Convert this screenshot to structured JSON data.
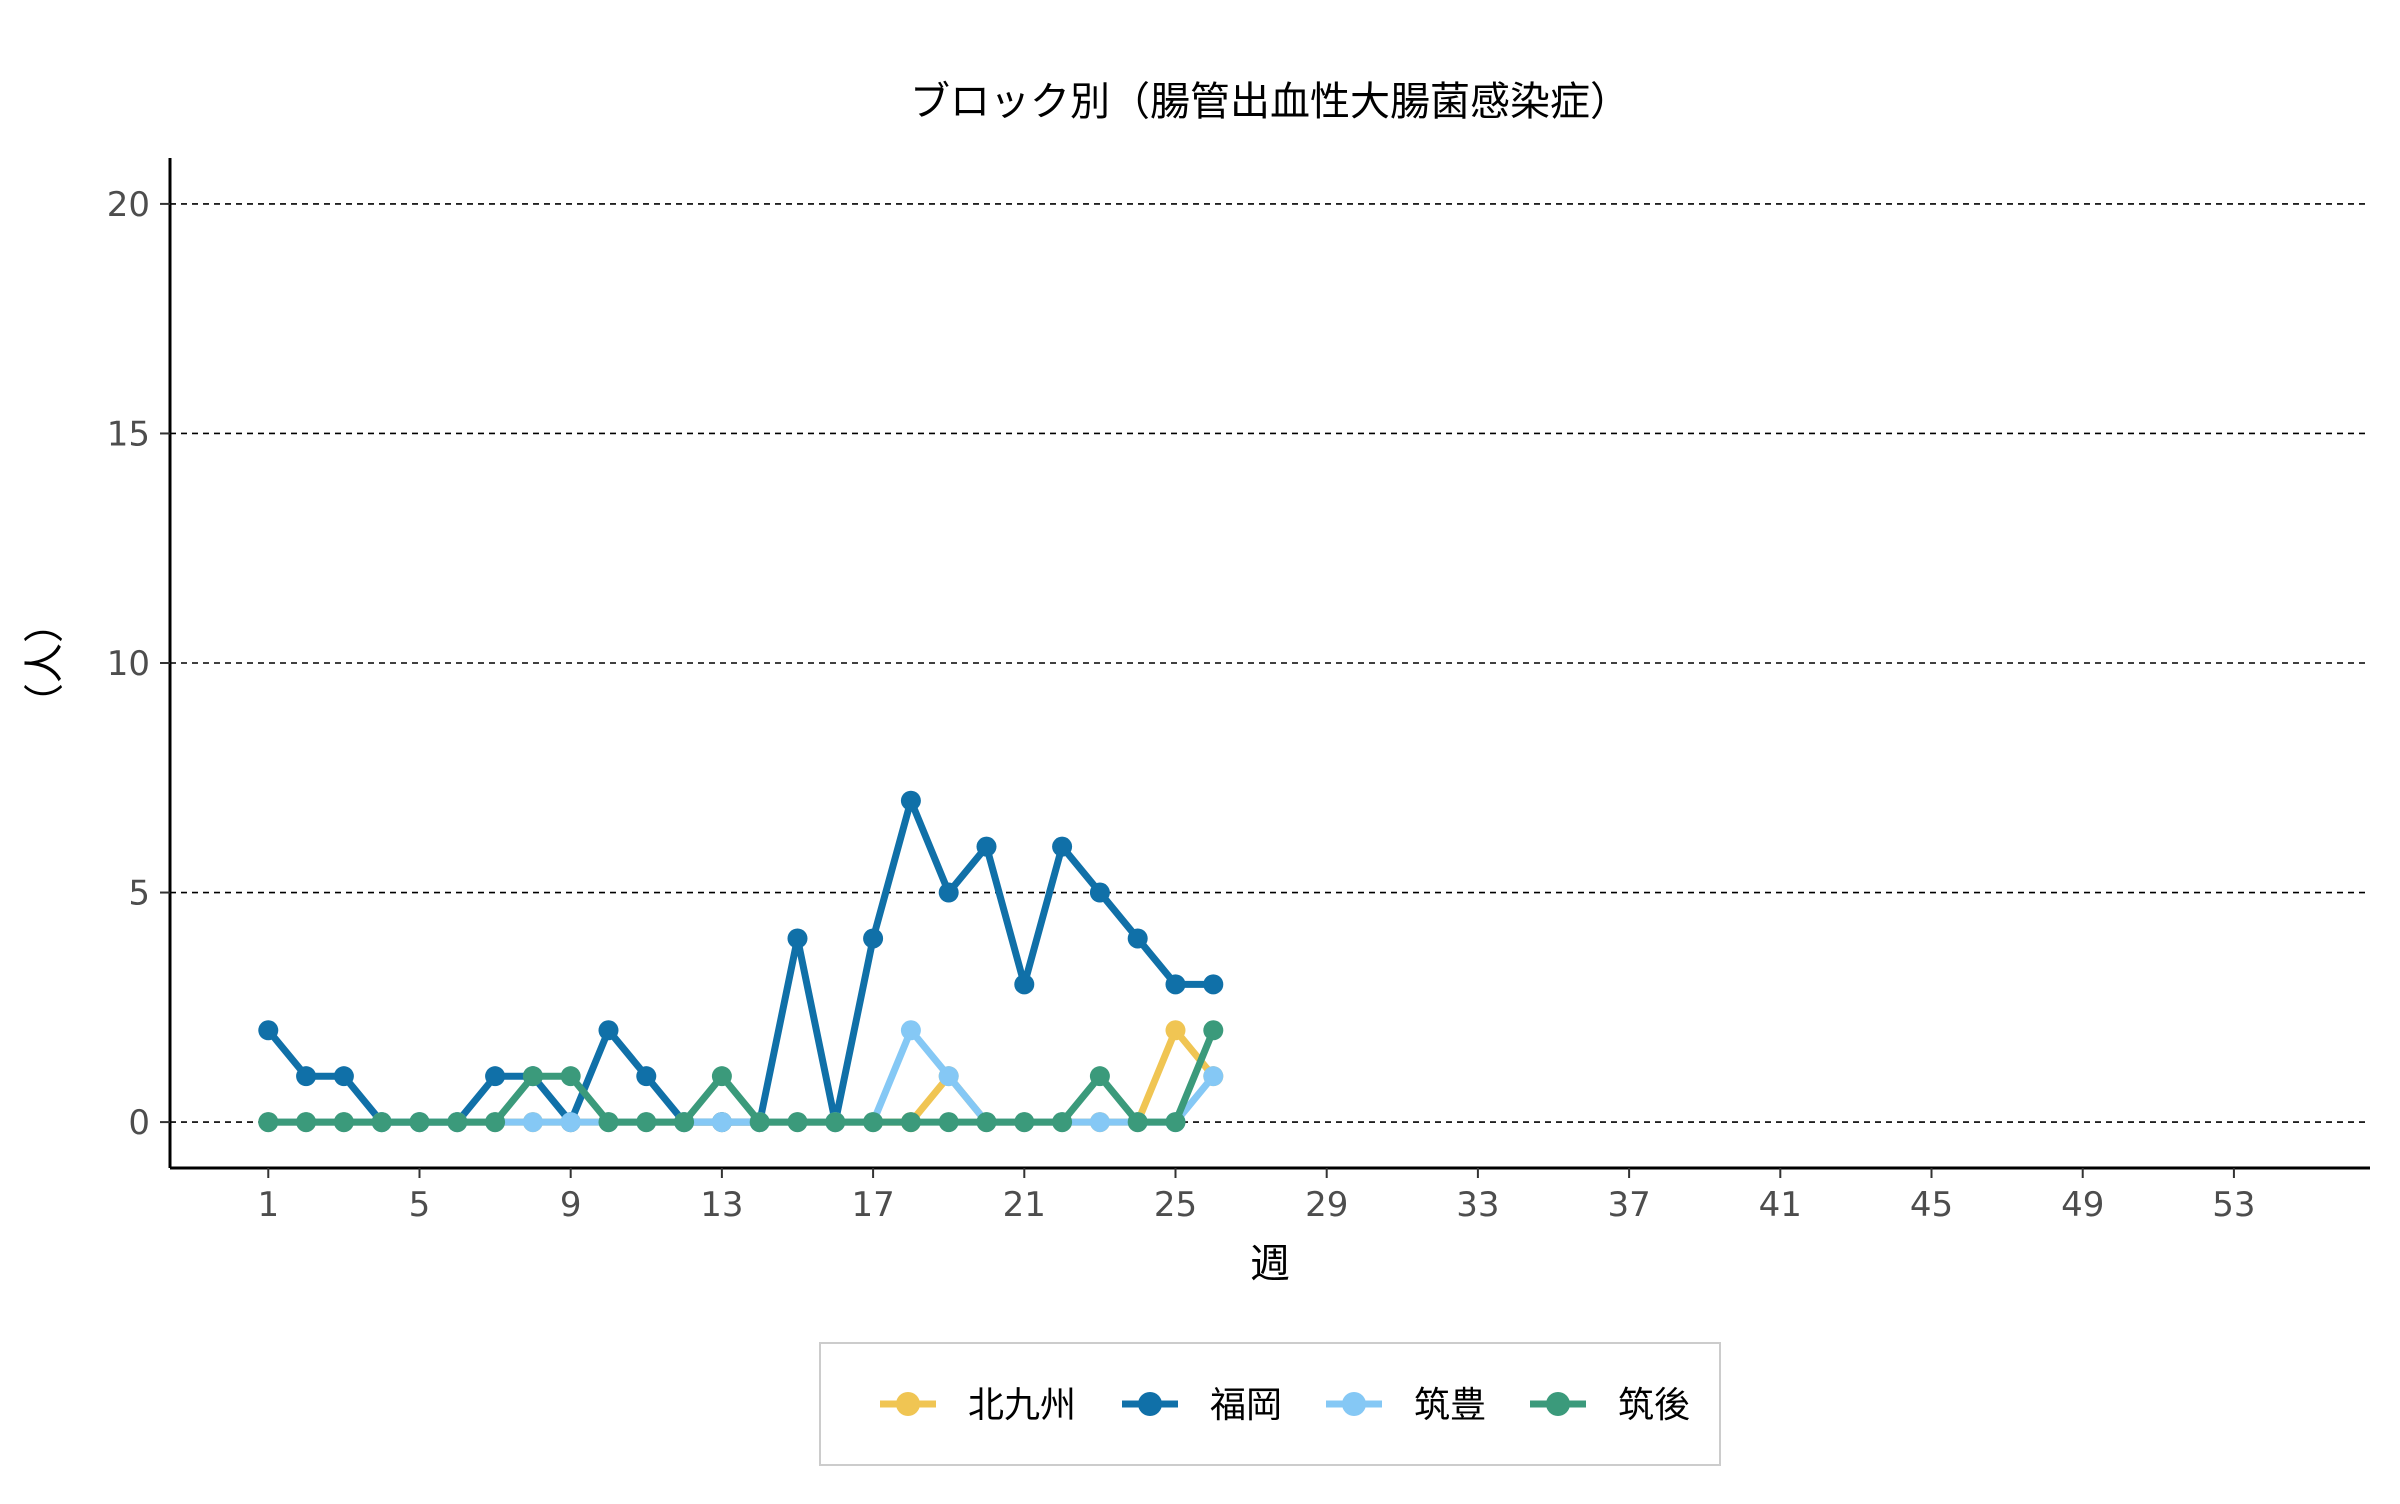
{
  "chart_data": {
    "type": "line",
    "title": "ブロック別（腸管出血性大腸菌感染症）",
    "xlabel": "週",
    "ylabel": "（人）",
    "xlim": [
      -1.6,
      56.6
    ],
    "ylim": [
      -1,
      21
    ],
    "x_ticks": [
      1,
      5,
      9,
      13,
      17,
      21,
      25,
      29,
      33,
      37,
      41,
      45,
      49,
      53
    ],
    "y_ticks": [
      0,
      5,
      10,
      15,
      20
    ],
    "grid": "horizontal dashed",
    "legend_position": "bottom",
    "x": [
      1,
      2,
      3,
      4,
      5,
      6,
      7,
      8,
      9,
      10,
      11,
      12,
      13,
      14,
      15,
      16,
      17,
      18,
      19,
      20,
      21,
      22,
      23,
      24,
      25,
      26
    ],
    "series": [
      {
        "name": "北九州",
        "color": "#f0c553",
        "values": [
          0,
          0,
          0,
          0,
          0,
          0,
          0,
          0,
          0,
          0,
          0,
          0,
          0,
          0,
          0,
          0,
          0,
          0,
          1,
          0,
          0,
          0,
          0,
          0,
          2,
          1
        ]
      },
      {
        "name": "福岡",
        "color": "#1070a8",
        "values": [
          2,
          1,
          1,
          0,
          0,
          0,
          1,
          1,
          0,
          2,
          1,
          0,
          0,
          0,
          4,
          0,
          4,
          7,
          5,
          6,
          3,
          6,
          5,
          4,
          3,
          3
        ]
      },
      {
        "name": "筑豊",
        "color": "#85c8f5",
        "values": [
          0,
          0,
          0,
          0,
          0,
          0,
          0,
          0,
          0,
          0,
          0,
          0,
          0,
          0,
          0,
          0,
          0,
          2,
          1,
          0,
          0,
          0,
          0,
          0,
          0,
          1
        ]
      },
      {
        "name": "筑後",
        "color": "#3b9a7b",
        "values": [
          0,
          0,
          0,
          0,
          0,
          0,
          0,
          1,
          1,
          0,
          0,
          0,
          1,
          0,
          0,
          0,
          0,
          0,
          0,
          0,
          0,
          0,
          1,
          0,
          0,
          2
        ]
      }
    ]
  }
}
